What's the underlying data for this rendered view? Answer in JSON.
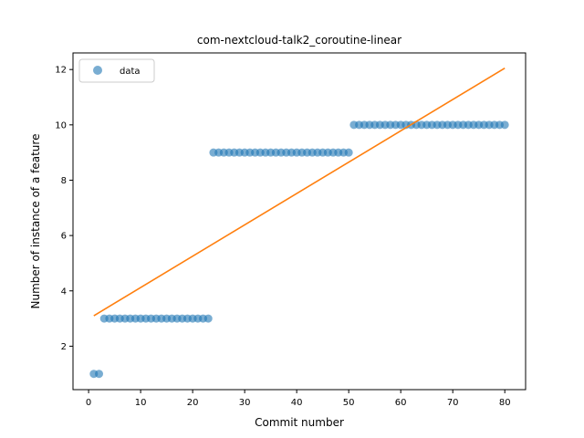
{
  "chart_data": {
    "type": "scatter",
    "title": "com-nextcloud-talk2_coroutine-linear",
    "xlabel": "Commit number",
    "ylabel": "Number of instance of a feature",
    "xlim": [
      -3,
      84
    ],
    "ylim": [
      0.43,
      12.6
    ],
    "xticks": [
      0,
      10,
      20,
      30,
      40,
      50,
      60,
      70,
      80
    ],
    "yticks": [
      2,
      4,
      6,
      8,
      10,
      12
    ],
    "legend_position": "top-left",
    "series": [
      {
        "name": "data",
        "kind": "scatter",
        "color": "#1f77b4",
        "x": [
          1,
          2,
          3,
          4,
          5,
          6,
          7,
          8,
          9,
          10,
          11,
          12,
          13,
          14,
          15,
          16,
          17,
          18,
          19,
          20,
          21,
          22,
          23,
          24,
          25,
          26,
          27,
          28,
          29,
          30,
          31,
          32,
          33,
          34,
          35,
          36,
          37,
          38,
          39,
          40,
          41,
          42,
          43,
          44,
          45,
          46,
          47,
          48,
          49,
          50,
          51,
          52,
          53,
          54,
          55,
          56,
          57,
          58,
          59,
          60,
          61,
          62,
          63,
          64,
          65,
          66,
          67,
          68,
          69,
          70,
          71,
          72,
          73,
          74,
          75,
          76,
          77,
          78,
          79,
          80
        ],
        "y": [
          1,
          1,
          3,
          3,
          3,
          3,
          3,
          3,
          3,
          3,
          3,
          3,
          3,
          3,
          3,
          3,
          3,
          3,
          3,
          3,
          3,
          3,
          3,
          9,
          9,
          9,
          9,
          9,
          9,
          9,
          9,
          9,
          9,
          9,
          9,
          9,
          9,
          9,
          9,
          9,
          9,
          9,
          9,
          9,
          9,
          9,
          9,
          9,
          9,
          9,
          10,
          10,
          10,
          10,
          10,
          10,
          10,
          10,
          10,
          10,
          10,
          10,
          10,
          10,
          10,
          10,
          10,
          10,
          10,
          10,
          10,
          10,
          10,
          10,
          10,
          10,
          10,
          10,
          10,
          10
        ]
      },
      {
        "kind": "line",
        "color": "#ff7f0e",
        "x": [
          1,
          80
        ],
        "y": [
          3.1,
          12.05
        ]
      }
    ]
  }
}
